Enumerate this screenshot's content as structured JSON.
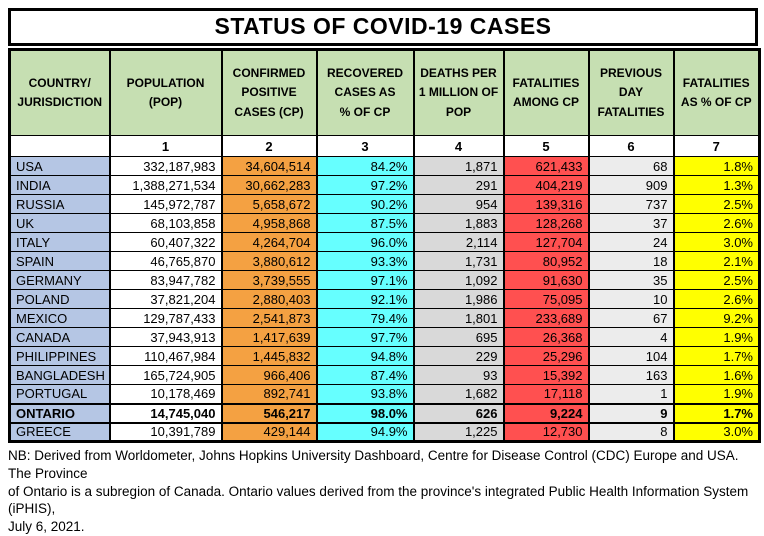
{
  "title": "STATUS OF COVID-19 CASES",
  "colors": {
    "header_green": "#C6DFB2",
    "country_blue": "#B5C6E4",
    "orange": "#F4A142",
    "cyan": "#66FFFF",
    "gray": "#D9D9D9",
    "red": "#FF5050",
    "light_gray": "#ECECEC",
    "yellow": "#FFFF00"
  },
  "table": {
    "columns": [
      {
        "label": "COUNTRY/\nJURISDICTION",
        "number": ""
      },
      {
        "label": "POPULATION\n(POP)",
        "number": "1"
      },
      {
        "label": "CONFIRMED\nPOSITIVE\nCASES (CP)",
        "number": "2"
      },
      {
        "label": "RECOVERED\nCASES AS\n% OF CP",
        "number": "3"
      },
      {
        "label": "DEATHS PER\n1 MILLION OF\nPOP",
        "number": "4"
      },
      {
        "label": "FATALITIES\nAMONG CP",
        "number": "5"
      },
      {
        "label": "PREVIOUS\nDAY\nFATALITIES",
        "number": "6"
      },
      {
        "label": "FATALITIES\nAS % OF CP",
        "number": "7"
      }
    ],
    "rows": [
      {
        "country": "USA",
        "values": [
          "332,187,983",
          "34,604,514",
          "84.2%",
          "1,871",
          "621,433",
          "68",
          "1.8%"
        ],
        "bold": false
      },
      {
        "country": "INDIA",
        "values": [
          "1,388,271,534",
          "30,662,283",
          "97.2%",
          "291",
          "404,219",
          "909",
          "1.3%"
        ],
        "bold": false
      },
      {
        "country": "RUSSIA",
        "values": [
          "145,972,787",
          "5,658,672",
          "90.2%",
          "954",
          "139,316",
          "737",
          "2.5%"
        ],
        "bold": false
      },
      {
        "country": "UK",
        "values": [
          "68,103,858",
          "4,958,868",
          "87.5%",
          "1,883",
          "128,268",
          "37",
          "2.6%"
        ],
        "bold": false
      },
      {
        "country": "ITALY",
        "values": [
          "60,407,322",
          "4,264,704",
          "96.0%",
          "2,114",
          "127,704",
          "24",
          "3.0%"
        ],
        "bold": false
      },
      {
        "country": "SPAIN",
        "values": [
          "46,765,870",
          "3,880,612",
          "93.3%",
          "1,731",
          "80,952",
          "18",
          "2.1%"
        ],
        "bold": false
      },
      {
        "country": "GERMANY",
        "values": [
          "83,947,782",
          "3,739,555",
          "97.1%",
          "1,092",
          "91,630",
          "35",
          "2.5%"
        ],
        "bold": false
      },
      {
        "country": "POLAND",
        "values": [
          "37,821,204",
          "2,880,403",
          "92.1%",
          "1,986",
          "75,095",
          "10",
          "2.6%"
        ],
        "bold": false
      },
      {
        "country": "MEXICO",
        "values": [
          "129,787,433",
          "2,541,873",
          "79.4%",
          "1,801",
          "233,689",
          "67",
          "9.2%"
        ],
        "bold": false
      },
      {
        "country": "CANADA",
        "values": [
          "37,943,913",
          "1,417,639",
          "97.7%",
          "695",
          "26,368",
          "4",
          "1.9%"
        ],
        "bold": false
      },
      {
        "country": "PHILIPPINES",
        "values": [
          "110,467,984",
          "1,445,832",
          "94.8%",
          "229",
          "25,296",
          "104",
          "1.7%"
        ],
        "bold": false
      },
      {
        "country": "BANGLADESH",
        "values": [
          "165,724,905",
          "966,406",
          "87.4%",
          "93",
          "15,392",
          "163",
          "1.6%"
        ],
        "bold": false
      },
      {
        "country": "PORTUGAL",
        "values": [
          "10,178,469",
          "892,741",
          "93.8%",
          "1,682",
          "17,118",
          "1",
          "1.9%"
        ],
        "bold": false
      },
      {
        "country": "ONTARIO",
        "values": [
          "14,745,040",
          "546,217",
          "98.0%",
          "626",
          "9,224",
          "9",
          "1.7%"
        ],
        "bold": true
      },
      {
        "country": "GREECE",
        "values": [
          "10,391,789",
          "429,144",
          "94.9%",
          "1,225",
          "12,730",
          "8",
          "3.0%"
        ],
        "bold": false
      }
    ]
  },
  "footer": {
    "note": "NB: Derived from Worldometer, Johns Hopkins University Dashboard, Centre for Disease Control (CDC) Europe and USA. The Province\nof Ontario is a subregion of Canada. Ontario values derived from the province's integrated Public Health Information System (iPHIS),\nJuly 6, 2021."
  }
}
